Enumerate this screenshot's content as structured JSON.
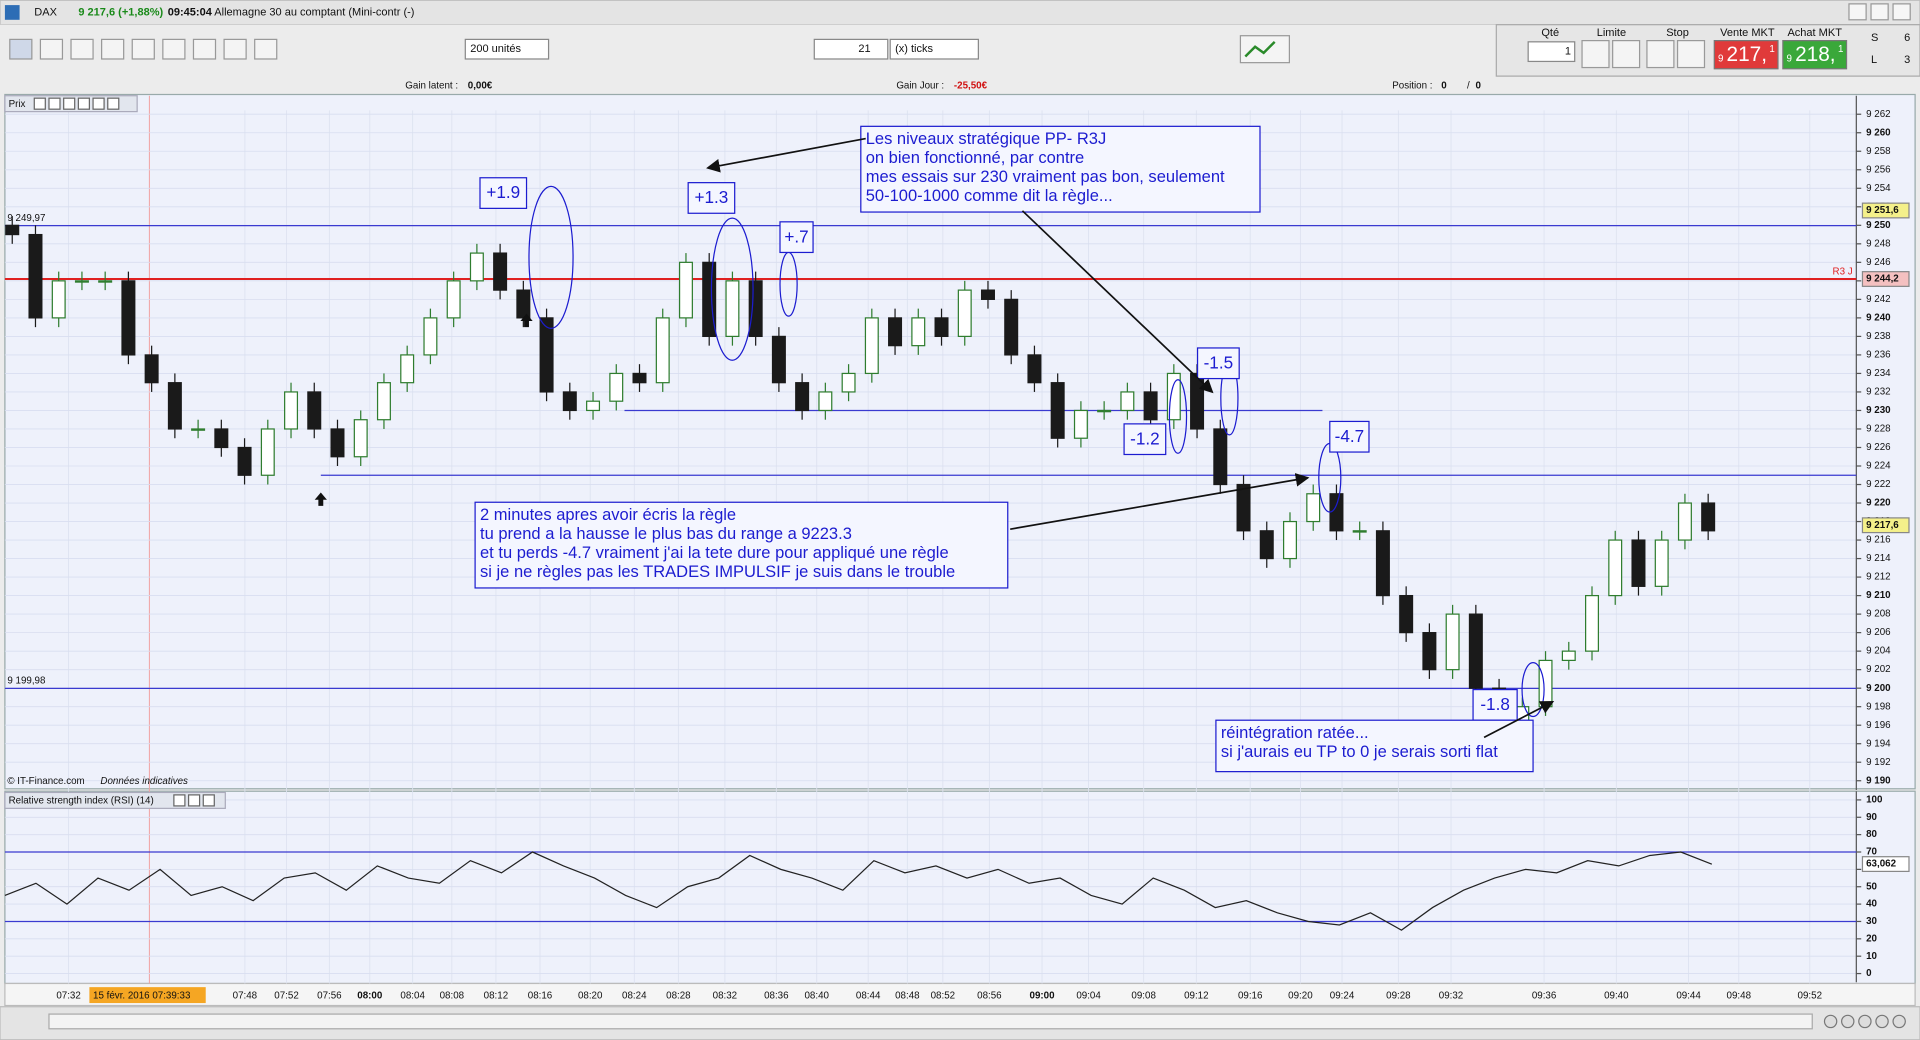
{
  "header": {
    "symbol": "DAX",
    "quote": "9 217,6 (+1,88%)",
    "time": "09:45:04",
    "instrument": "Allemagne 30 au comptant (Mini-contr (-)"
  },
  "toolbar": {
    "units": "200 unités",
    "ticks_value": "21",
    "ticks_unit": "(x) ticks"
  },
  "order_panel": {
    "qty_label": "Qté",
    "qty": "1",
    "limit_label": "Limite",
    "stop_label": "Stop",
    "sell_label": "Vente MKT",
    "buy_label": "Achat MKT",
    "sell": {
      "prefix": "9",
      "main": "217,",
      "suffix": "1"
    },
    "buy": {
      "prefix": "9",
      "main": "218,",
      "suffix": "1"
    },
    "s_label": "S",
    "s_value": "6",
    "l_label": "L",
    "l_value": "3"
  },
  "info_bar": {
    "gain_latent_label": "Gain latent :",
    "gain_latent": "0,00€",
    "gain_jour_label": "Gain Jour :",
    "gain_jour": "-25,50€",
    "position_label": "Position :",
    "position_a": "0",
    "position_sep": "/",
    "position_b": "0"
  },
  "panels": {
    "price_title": "Prix",
    "rsi_title": "Relative strength index (RSI) (14)",
    "copyright": "© IT-Finance.com",
    "disclaimer": "Données indicatives"
  },
  "time_axis": {
    "cursor_label": "15 févr. 2016 07:39:33",
    "categories": [
      "07:32",
      "07:48",
      "07:52",
      "07:56",
      "08:00",
      "08:04",
      "08:08",
      "08:12",
      "08:16",
      "08:20",
      "08:24",
      "08:28",
      "08:32",
      "08:36",
      "08:40",
      "08:44",
      "08:48",
      "08:52",
      "08:56",
      "09:00",
      "09:04",
      "09:08",
      "09:12",
      "09:16",
      "09:20",
      "09:24",
      "09:28",
      "09:32",
      "09:36",
      "09:40",
      "09:44",
      "09:48",
      "09:52"
    ]
  },
  "chart_data": [
    {
      "type": "candlestick",
      "up_color": "#2f7d2f",
      "down_color": "#1a1a1a",
      "grid": true,
      "ylim": [
        9189,
        9264
      ],
      "yticks": [
        {
          "value": 9190,
          "label": "9 190"
        },
        {
          "value": 9192,
          "label": "9 192"
        },
        {
          "value": 9194,
          "label": "9 194"
        },
        {
          "value": 9196,
          "label": "9 196"
        },
        {
          "value": 9198,
          "label": "9 198"
        },
        {
          "value": 9200,
          "label": "9 200"
        },
        {
          "value": 9202,
          "label": "9 202"
        },
        {
          "value": 9204,
          "label": "9 204"
        },
        {
          "value": 9206,
          "label": "9 206"
        },
        {
          "value": 9208,
          "label": "9 208"
        },
        {
          "value": 9210,
          "label": "9 210"
        },
        {
          "value": 9212,
          "label": "9 212"
        },
        {
          "value": 9214,
          "label": "9 214"
        },
        {
          "value": 9216,
          "label": "9 216"
        },
        {
          "value": 9218,
          "label": "9 218"
        },
        {
          "value": 9220,
          "label": "9 220"
        },
        {
          "value": 9222,
          "label": "9 222"
        },
        {
          "value": 9224,
          "label": "9 224"
        },
        {
          "value": 9226,
          "label": "9 226"
        },
        {
          "value": 9228,
          "label": "9 228"
        },
        {
          "value": 9230,
          "label": "9 230"
        },
        {
          "value": 9232,
          "label": "9 232"
        },
        {
          "value": 9234,
          "label": "9 234"
        },
        {
          "value": 9236,
          "label": "9 236"
        },
        {
          "value": 9238,
          "label": "9 238"
        },
        {
          "value": 9240,
          "label": "9 240"
        },
        {
          "value": 9242,
          "label": "9 242"
        },
        {
          "value": 9244,
          "label": "9 244"
        },
        {
          "value": 9246,
          "label": "9 246"
        },
        {
          "value": 9248,
          "label": "9 248"
        },
        {
          "value": 9250,
          "label": "9 250"
        },
        {
          "value": 9252,
          "label": "9 252"
        },
        {
          "value": 9254,
          "label": "9 254"
        },
        {
          "value": 9256,
          "label": "9 256"
        },
        {
          "value": 9258,
          "label": "9 258"
        },
        {
          "value": 9260,
          "label": "9 260"
        },
        {
          "value": 9262,
          "label": "9 262"
        }
      ],
      "open": [
        9250,
        9249,
        9240,
        9244,
        9244,
        9244,
        9236,
        9233,
        9228,
        9228,
        9226,
        9223,
        9228,
        9232,
        9228,
        9225,
        9229,
        9233,
        9236,
        9240,
        9244,
        9247,
        9243,
        9240,
        9232,
        9230,
        9231,
        9234,
        9233,
        9240,
        9246,
        9238,
        9244,
        9238,
        9233,
        9230,
        9232,
        9234,
        9240,
        9237,
        9240,
        9238,
        9243,
        9242,
        9236,
        9233,
        9227,
        9230,
        9230,
        9232,
        9229,
        9234,
        9228,
        9222,
        9217,
        9214,
        9218,
        9221,
        9217,
        9217,
        9210,
        9206,
        9202,
        9208,
        9200,
        9196,
        9198,
        9203,
        9204,
        9210,
        9216,
        9211,
        9216,
        9220
      ],
      "high": [
        9251,
        9250,
        9245,
        9245,
        9245,
        9245,
        9237,
        9234,
        9229,
        9229,
        9227,
        9229,
        9233,
        9233,
        9229,
        9230,
        9234,
        9237,
        9241,
        9245,
        9248,
        9248,
        9244,
        9241,
        9233,
        9232,
        9235,
        9235,
        9241,
        9247,
        9247,
        9245,
        9245,
        9239,
        9234,
        9233,
        9235,
        9241,
        9241,
        9241,
        9241,
        9244,
        9244,
        9243,
        9237,
        9234,
        9231,
        9231,
        9233,
        9233,
        9235,
        9235,
        9229,
        9223,
        9218,
        9219,
        9222,
        9222,
        9218,
        9218,
        9211,
        9207,
        9209,
        9209,
        9201,
        9199,
        9204,
        9205,
        9211,
        9217,
        9217,
        9217,
        9221,
        9221
      ],
      "low": [
        9248,
        9239,
        9239,
        9243,
        9243,
        9235,
        9232,
        9227,
        9227,
        9225,
        9222,
        9222,
        9227,
        9227,
        9224,
        9224,
        9228,
        9232,
        9235,
        9239,
        9243,
        9242,
        9239,
        9231,
        9229,
        9229,
        9230,
        9232,
        9232,
        9239,
        9237,
        9237,
        9237,
        9232,
        9229,
        9229,
        9231,
        9233,
        9236,
        9236,
        9237,
        9237,
        9241,
        9235,
        9232,
        9226,
        9226,
        9229,
        9229,
        9228,
        9228,
        9227,
        9221,
        9216,
        9213,
        9213,
        9217,
        9216,
        9216,
        9209,
        9205,
        9201,
        9201,
        9199,
        9195,
        9195,
        9197,
        9202,
        9203,
        9209,
        9210,
        9210,
        9215,
        9216
      ],
      "close": [
        9249,
        9240,
        9244,
        9244,
        9244,
        9236,
        9233,
        9228,
        9228,
        9226,
        9223,
        9228,
        9232,
        9228,
        9225,
        9229,
        9233,
        9236,
        9240,
        9244,
        9247,
        9243,
        9240,
        9232,
        9230,
        9231,
        9234,
        9233,
        9240,
        9246,
        9238,
        9244,
        9238,
        9233,
        9230,
        9232,
        9234,
        9240,
        9237,
        9240,
        9238,
        9243,
        9242,
        9236,
        9233,
        9227,
        9230,
        9230,
        9232,
        9229,
        9234,
        9228,
        9222,
        9217,
        9214,
        9218,
        9221,
        9217,
        9217,
        9210,
        9206,
        9202,
        9208,
        9200,
        9196,
        9198,
        9203,
        9204,
        9210,
        9216,
        9211,
        9216,
        9220,
        9217
      ],
      "levels": [
        {
          "value": 9249.97,
          "label": "9 249,97",
          "color": "#3a3ad0"
        },
        {
          "value": 9244.2,
          "label": "R3 J",
          "color": "#e02020"
        },
        {
          "value": 9230,
          "color": "#3a3ad0"
        },
        {
          "value": 9223,
          "color": "#3a3ad0"
        },
        {
          "value": 9199.98,
          "label": "9 199,98",
          "color": "#3a3ad0"
        }
      ],
      "price_tags": [
        {
          "value": 9251.6,
          "label": "9 251,6",
          "color": "#f4f08a"
        },
        {
          "value": 9244.2,
          "label": "9 244,2",
          "color": "#f4c0c0"
        },
        {
          "value": 9217.6,
          "label": "9 217,6",
          "color": "#f4f08a"
        }
      ],
      "annotations": {
        "gains": [
          "+1.9",
          "+1.3",
          "+.7",
          "-1.5",
          "-1.2",
          "-4.7",
          "-1.8"
        ],
        "notes": [
          [
            "Les niveaux stratégique PP- R3J",
            "on bien fonctionné, par contre",
            "mes essais sur 230 vraiment pas bon, seulement",
            "50-100-1000 comme dit la règle..."
          ],
          [
            "2 minutes apres avoir écris la règle",
            "tu prend a la hausse le plus bas du range a 9223.3",
            "et tu perds -4.7 vraiment j'ai la tete dure pour appliqué une règle",
            "si je ne règles pas les  TRADES IMPULSIF je suis dans le trouble"
          ],
          [
            "réintégration ratée...",
            "si j'aurais eu TP to 0 je serais sorti flat"
          ]
        ]
      }
    },
    {
      "type": "line",
      "color": "#222222",
      "grid": true,
      "ylim": [
        -5,
        105
      ],
      "yticks": [
        0,
        10,
        20,
        30,
        40,
        50,
        60,
        70,
        80,
        90,
        100
      ],
      "levels": [
        {
          "value": 70,
          "color": "#3a3ad0"
        },
        {
          "value": 30,
          "color": "#3a3ad0"
        }
      ],
      "price_tags": [
        {
          "value": 63.062,
          "label": "63,062",
          "color": "#ffffff"
        }
      ],
      "values": [
        45,
        52,
        40,
        55,
        48,
        60,
        45,
        50,
        42,
        55,
        58,
        48,
        62,
        55,
        52,
        65,
        58,
        70,
        62,
        55,
        45,
        38,
        50,
        55,
        68,
        60,
        55,
        48,
        65,
        58,
        62,
        55,
        60,
        52,
        55,
        45,
        40,
        55,
        48,
        38,
        42,
        35,
        30,
        28,
        35,
        25,
        38,
        48,
        55,
        60,
        58,
        65,
        62,
        68,
        70,
        63
      ]
    }
  ]
}
